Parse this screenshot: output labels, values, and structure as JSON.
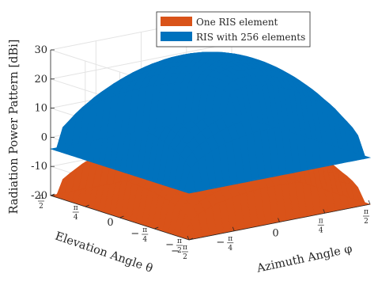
{
  "chart_data": {
    "type": "surface",
    "title": "",
    "xlabel": "Azimuth Angle φ",
    "ylabel": "Elevation Angle θ",
    "zlabel": "Radiation Power Pattern [dBi]",
    "zlim": [
      -20,
      30
    ],
    "z_ticks": [
      "-20",
      "-10",
      "0",
      "10",
      "20",
      "30"
    ],
    "x_ticks": [
      "−π/2",
      "−π/4",
      "0",
      "π/4",
      "π/2"
    ],
    "y_ticks": [
      "π/2",
      "π/4",
      "0",
      "−π/4",
      "−π/2"
    ],
    "grid": true,
    "legend_position": "top-center",
    "series": [
      {
        "name": "One RIS element",
        "color": "#D95319",
        "x": [
          -1.5708,
          -0.7854,
          0,
          0.7854,
          1.5708
        ],
        "y": [
          -1.5708,
          -0.7854,
          0,
          0.7854,
          1.5708
        ],
        "z": [
          [
            -20,
            -20,
            -20,
            -20,
            -20
          ],
          [
            -20,
            0.5,
            2.6,
            0.5,
            -20
          ],
          [
            -20,
            2.6,
            5.0,
            2.6,
            -20
          ],
          [
            -20,
            0.5,
            2.6,
            0.5,
            -20
          ],
          [
            -20,
            -20,
            -20,
            -20,
            -20
          ]
        ]
      },
      {
        "name": "RIS with 256 elements",
        "color": "#0072BD",
        "x": [
          -1.5708,
          -0.7854,
          0,
          0.7854,
          1.5708
        ],
        "y": [
          -1.5708,
          -0.7854,
          0,
          0.7854,
          1.5708
        ],
        "z": [
          [
            -4,
            -4,
            -4,
            -4,
            -4
          ],
          [
            -4,
            24.5,
            26.6,
            24.5,
            -4
          ],
          [
            -4,
            26.6,
            29.1,
            26.6,
            -4
          ],
          [
            -4,
            24.5,
            26.6,
            24.5,
            -4
          ],
          [
            -4,
            -4,
            -4,
            -4,
            -4
          ]
        ]
      }
    ]
  }
}
